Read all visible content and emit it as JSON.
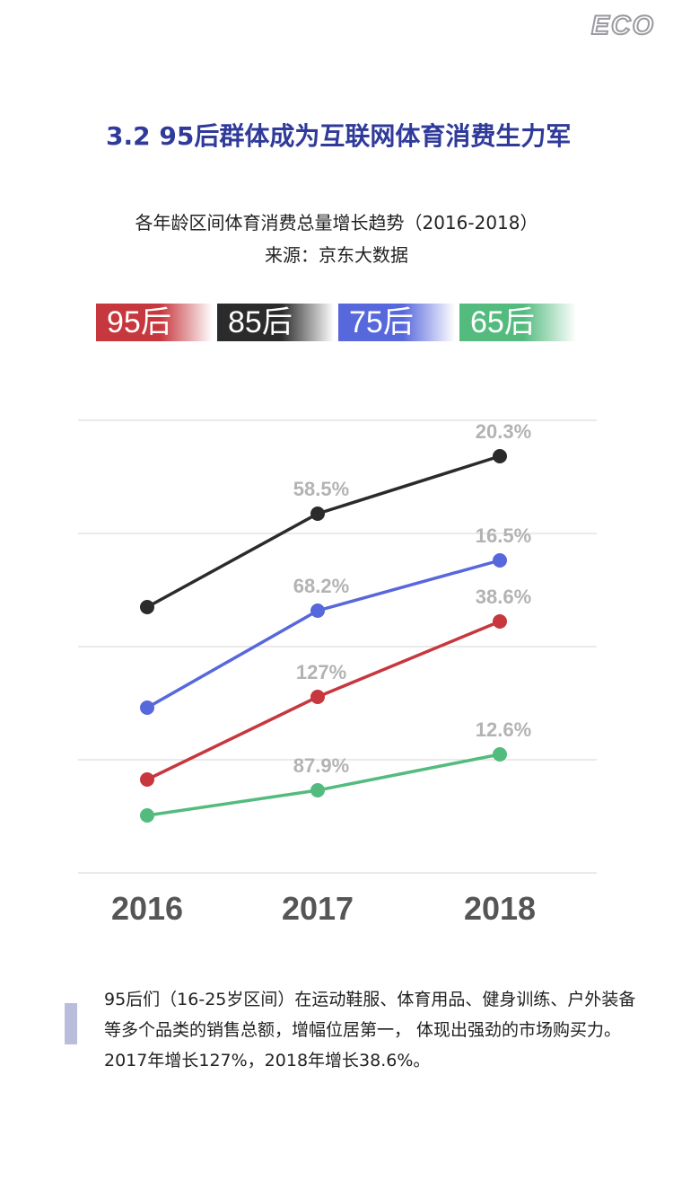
{
  "brand": {
    "logo_text": "ECO"
  },
  "section_title": "3.2  95后群体成为互联网体育消费生力军",
  "chart_data": {
    "type": "line",
    "title": "各年龄区间体育消费总量增长趋势（2016-2018）",
    "subtitle": "来源：京东大数据",
    "x": [
      "2016",
      "2017",
      "2018"
    ],
    "grid": true,
    "legend_position": "top",
    "series": [
      {
        "name": "95后",
        "color": "#c7373e",
        "values": [
          null,
          127,
          38.6
        ],
        "labels": [
          "",
          "127%",
          "38.6%"
        ]
      },
      {
        "name": "85后",
        "color": "#2b2b2b",
        "values": [
          null,
          58.5,
          20.3
        ],
        "labels": [
          "",
          "58.5%",
          "20.3%"
        ]
      },
      {
        "name": "75后",
        "color": "#5767dc",
        "values": [
          null,
          68.2,
          16.5
        ],
        "labels": [
          "",
          "68.2%",
          "16.5%"
        ]
      },
      {
        "name": "65后",
        "color": "#54bb7f",
        "values": [
          null,
          87.9,
          12.6
        ],
        "labels": [
          "",
          "87.9%",
          "12.6%"
        ]
      }
    ],
    "display_levels": [
      [
        0.26,
        0.49,
        0.7
      ],
      [
        0.74,
        1.0,
        1.16
      ],
      [
        0.46,
        0.73,
        0.87
      ],
      [
        0.16,
        0.23,
        0.33
      ]
    ]
  },
  "description": "95后们（16-25岁区间）在运动鞋服、体育用品、健身训练、户外装备等多个品类的销售总额，增幅位居第一， 体现出强劲的市场购买力。2017年增长127%，2018年增长38.6%。"
}
